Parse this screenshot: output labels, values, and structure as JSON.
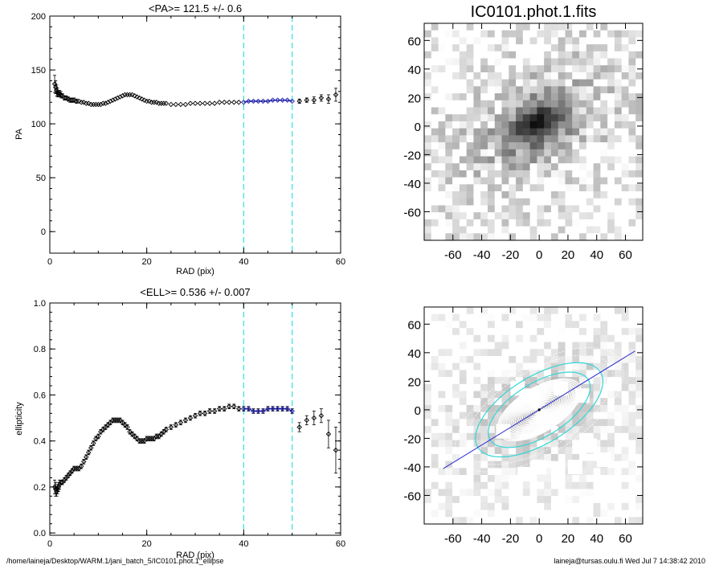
{
  "footer": {
    "path": "/home/laineja/Desktop/WARM.1/jani_batch_5/IC0101.phot.1_ellipse",
    "user_time": "laineja@tursas.oulu.fi  Wed Jul  7 14:38:42 2010"
  },
  "colors": {
    "cut_line": "#33e0e0",
    "fit": "#1a1aa8",
    "ellipse_white": "#ffffff",
    "ellipse_cyan": "#33d6d6",
    "axis_line": "#2a2ad0"
  },
  "chart_data": [
    {
      "type": "scatter",
      "title": "<PA>= 121.5 +/-   0.6",
      "xlabel": "RAD (pix)",
      "ylabel": "PA",
      "xlim": [
        0,
        60
      ],
      "ylim": [
        -20,
        200
      ],
      "xticks": [
        0,
        20,
        40,
        60
      ],
      "yticks": [
        0,
        50,
        100,
        150,
        200
      ],
      "fit_range": [
        40,
        50
      ],
      "fit_value": 121.5,
      "series": [
        {
          "x": [
            1.0,
            1.2,
            1.4,
            1.6,
            1.8,
            2.0,
            2.3,
            2.6,
            3.0,
            3.4,
            3.8,
            4.2,
            4.6,
            5.0,
            5.5,
            6.0,
            6.5,
            7.0,
            7.5,
            8.0,
            8.5,
            9.0,
            9.5,
            10.0,
            10.5,
            11.0,
            11.5,
            12.0,
            12.5,
            13.0,
            13.5,
            14.0,
            14.5,
            15.0,
            15.5,
            16.0,
            16.5,
            17.0,
            17.5,
            18.0,
            18.5,
            19.0,
            19.5,
            20.0,
            20.5,
            21.0,
            21.5,
            22.0,
            22.5,
            23.0,
            23.5,
            24.0,
            25.0,
            26.0,
            27.0,
            28.0,
            29.0,
            30.0,
            31.0,
            32.0,
            33.0,
            34.0,
            35.0,
            36.0,
            37.0,
            38.0,
            39.0,
            40.0,
            41.0,
            42.0,
            43.0,
            44.0,
            45.0,
            46.0,
            47.0,
            48.0,
            49.0,
            50.0,
            51.5,
            53.0,
            54.5,
            56.0,
            57.5,
            59.0
          ],
          "y": [
            137,
            134,
            131,
            129,
            128,
            128,
            127,
            126,
            124,
            124,
            123,
            122,
            122,
            122,
            121,
            121,
            120,
            120,
            119,
            119,
            118,
            118,
            118,
            118,
            118,
            119,
            119,
            120,
            121,
            122,
            123,
            124,
            125,
            126,
            127,
            127,
            127,
            127,
            126,
            125,
            124,
            123,
            122,
            121,
            121,
            120,
            120,
            120,
            119,
            119,
            119,
            119,
            118,
            118,
            118,
            118,
            119,
            119,
            119,
            119,
            119,
            119,
            120,
            120,
            120,
            120,
            120,
            120,
            121,
            121,
            121,
            121,
            121,
            122,
            122,
            122,
            122,
            121,
            121,
            122,
            122,
            124,
            123,
            127
          ],
          "err": [
            8,
            6,
            5,
            4,
            3,
            3,
            3,
            2,
            2,
            2,
            2,
            2,
            2,
            2,
            2,
            1,
            1,
            1,
            1,
            1,
            1,
            1,
            1,
            1,
            1,
            1,
            1,
            1,
            1,
            1,
            1,
            1,
            1,
            1,
            1,
            1,
            1,
            1,
            1,
            1,
            1,
            1,
            1,
            1,
            1,
            1,
            1,
            1,
            1,
            1,
            1,
            1,
            1,
            1,
            1,
            1,
            1,
            1,
            1,
            1,
            1,
            1,
            1,
            1,
            1,
            1,
            1,
            1,
            1,
            1,
            1,
            1,
            1,
            1,
            1,
            1,
            1,
            1,
            2,
            2,
            3,
            3,
            4,
            6
          ]
        }
      ]
    },
    {
      "type": "scatter",
      "title": "<ELL>= 0.536 +/-  0.007",
      "xlabel": "RAD (pix)",
      "ylabel": "ellipticity",
      "xlim": [
        0,
        60
      ],
      "ylim": [
        -0.01,
        1.0
      ],
      "xticks": [
        0,
        20,
        40,
        60
      ],
      "yticks": [
        0.0,
        0.2,
        0.4,
        0.6,
        0.8,
        1.0
      ],
      "ytick_labels": [
        "0.0",
        "0.2",
        "0.4",
        "0.6",
        "0.8",
        "1.0"
      ],
      "fit_range": [
        40,
        50
      ],
      "fit_value": 0.536,
      "series": [
        {
          "x": [
            1.0,
            1.2,
            1.4,
            1.6,
            1.8,
            2.0,
            2.3,
            2.6,
            3.0,
            3.4,
            3.8,
            4.2,
            4.6,
            5.0,
            5.5,
            6.0,
            6.5,
            7.0,
            7.5,
            8.0,
            8.5,
            9.0,
            9.5,
            10.0,
            10.5,
            11.0,
            11.5,
            12.0,
            12.5,
            13.0,
            13.5,
            14.0,
            14.5,
            15.0,
            15.5,
            16.0,
            16.5,
            17.0,
            17.5,
            18.0,
            18.5,
            19.0,
            19.5,
            20.0,
            20.5,
            21.0,
            21.5,
            22.0,
            22.5,
            23.0,
            23.5,
            24.0,
            25.0,
            26.0,
            27.0,
            28.0,
            29.0,
            30.0,
            31.0,
            32.0,
            33.0,
            34.0,
            35.0,
            36.0,
            37.0,
            38.0,
            39.0,
            40.0,
            41.0,
            42.0,
            43.0,
            44.0,
            45.0,
            46.0,
            47.0,
            48.0,
            49.0,
            50.0,
            51.5,
            53.0,
            54.5,
            56.0,
            57.5,
            59.0
          ],
          "y": [
            0.2,
            0.19,
            0.18,
            0.19,
            0.2,
            0.21,
            0.22,
            0.22,
            0.23,
            0.24,
            0.25,
            0.26,
            0.27,
            0.28,
            0.28,
            0.28,
            0.29,
            0.31,
            0.33,
            0.35,
            0.37,
            0.39,
            0.41,
            0.42,
            0.44,
            0.45,
            0.46,
            0.47,
            0.48,
            0.49,
            0.49,
            0.49,
            0.49,
            0.48,
            0.47,
            0.46,
            0.44,
            0.43,
            0.42,
            0.41,
            0.4,
            0.4,
            0.4,
            0.41,
            0.41,
            0.41,
            0.41,
            0.42,
            0.42,
            0.43,
            0.44,
            0.45,
            0.46,
            0.47,
            0.48,
            0.49,
            0.5,
            0.51,
            0.52,
            0.52,
            0.53,
            0.53,
            0.54,
            0.54,
            0.55,
            0.55,
            0.54,
            0.54,
            0.54,
            0.53,
            0.53,
            0.53,
            0.54,
            0.54,
            0.54,
            0.54,
            0.54,
            0.53,
            0.46,
            0.49,
            0.5,
            0.51,
            0.43,
            0.36
          ],
          "err": [
            0.03,
            0.03,
            0.02,
            0.02,
            0.02,
            0.02,
            0.01,
            0.01,
            0.01,
            0.01,
            0.01,
            0.01,
            0.01,
            0.01,
            0.01,
            0.01,
            0.01,
            0.01,
            0.01,
            0.01,
            0.01,
            0.01,
            0.01,
            0.01,
            0.01,
            0.01,
            0.01,
            0.01,
            0.01,
            0.01,
            0.01,
            0.01,
            0.01,
            0.01,
            0.01,
            0.01,
            0.01,
            0.01,
            0.01,
            0.01,
            0.01,
            0.01,
            0.01,
            0.01,
            0.01,
            0.01,
            0.01,
            0.01,
            0.01,
            0.01,
            0.01,
            0.01,
            0.01,
            0.01,
            0.01,
            0.01,
            0.01,
            0.01,
            0.01,
            0.01,
            0.01,
            0.01,
            0.01,
            0.01,
            0.01,
            0.01,
            0.01,
            0.01,
            0.01,
            0.01,
            0.01,
            0.01,
            0.01,
            0.01,
            0.01,
            0.01,
            0.01,
            0.01,
            0.02,
            0.02,
            0.03,
            0.03,
            0.06,
            0.1
          ]
        }
      ]
    },
    {
      "type": "heatmap",
      "title": "IC0101.phot.1.fits",
      "xlim": [
        -80,
        72
      ],
      "ylim": [
        -80,
        72
      ],
      "xticks": [
        -60,
        -40,
        -20,
        0,
        20,
        40,
        60
      ],
      "yticks": [
        -60,
        -40,
        -20,
        0,
        20,
        40,
        60
      ],
      "galaxy": {
        "pa_deg": 121.5,
        "ellipticity": 0.536,
        "scale_pix": 22
      }
    },
    {
      "type": "heatmap",
      "title": "",
      "xlim": [
        -80,
        72
      ],
      "ylim": [
        -80,
        72
      ],
      "xticks": [
        -60,
        -40,
        -20,
        0,
        20,
        40,
        60
      ],
      "yticks": [
        -60,
        -40,
        -20,
        0,
        20,
        40,
        60
      ],
      "overlay": {
        "pa_deg": 121.5,
        "ellipticity": 0.536,
        "major_axis_line": true,
        "highlight_radii": [
          40,
          50
        ]
      }
    }
  ]
}
